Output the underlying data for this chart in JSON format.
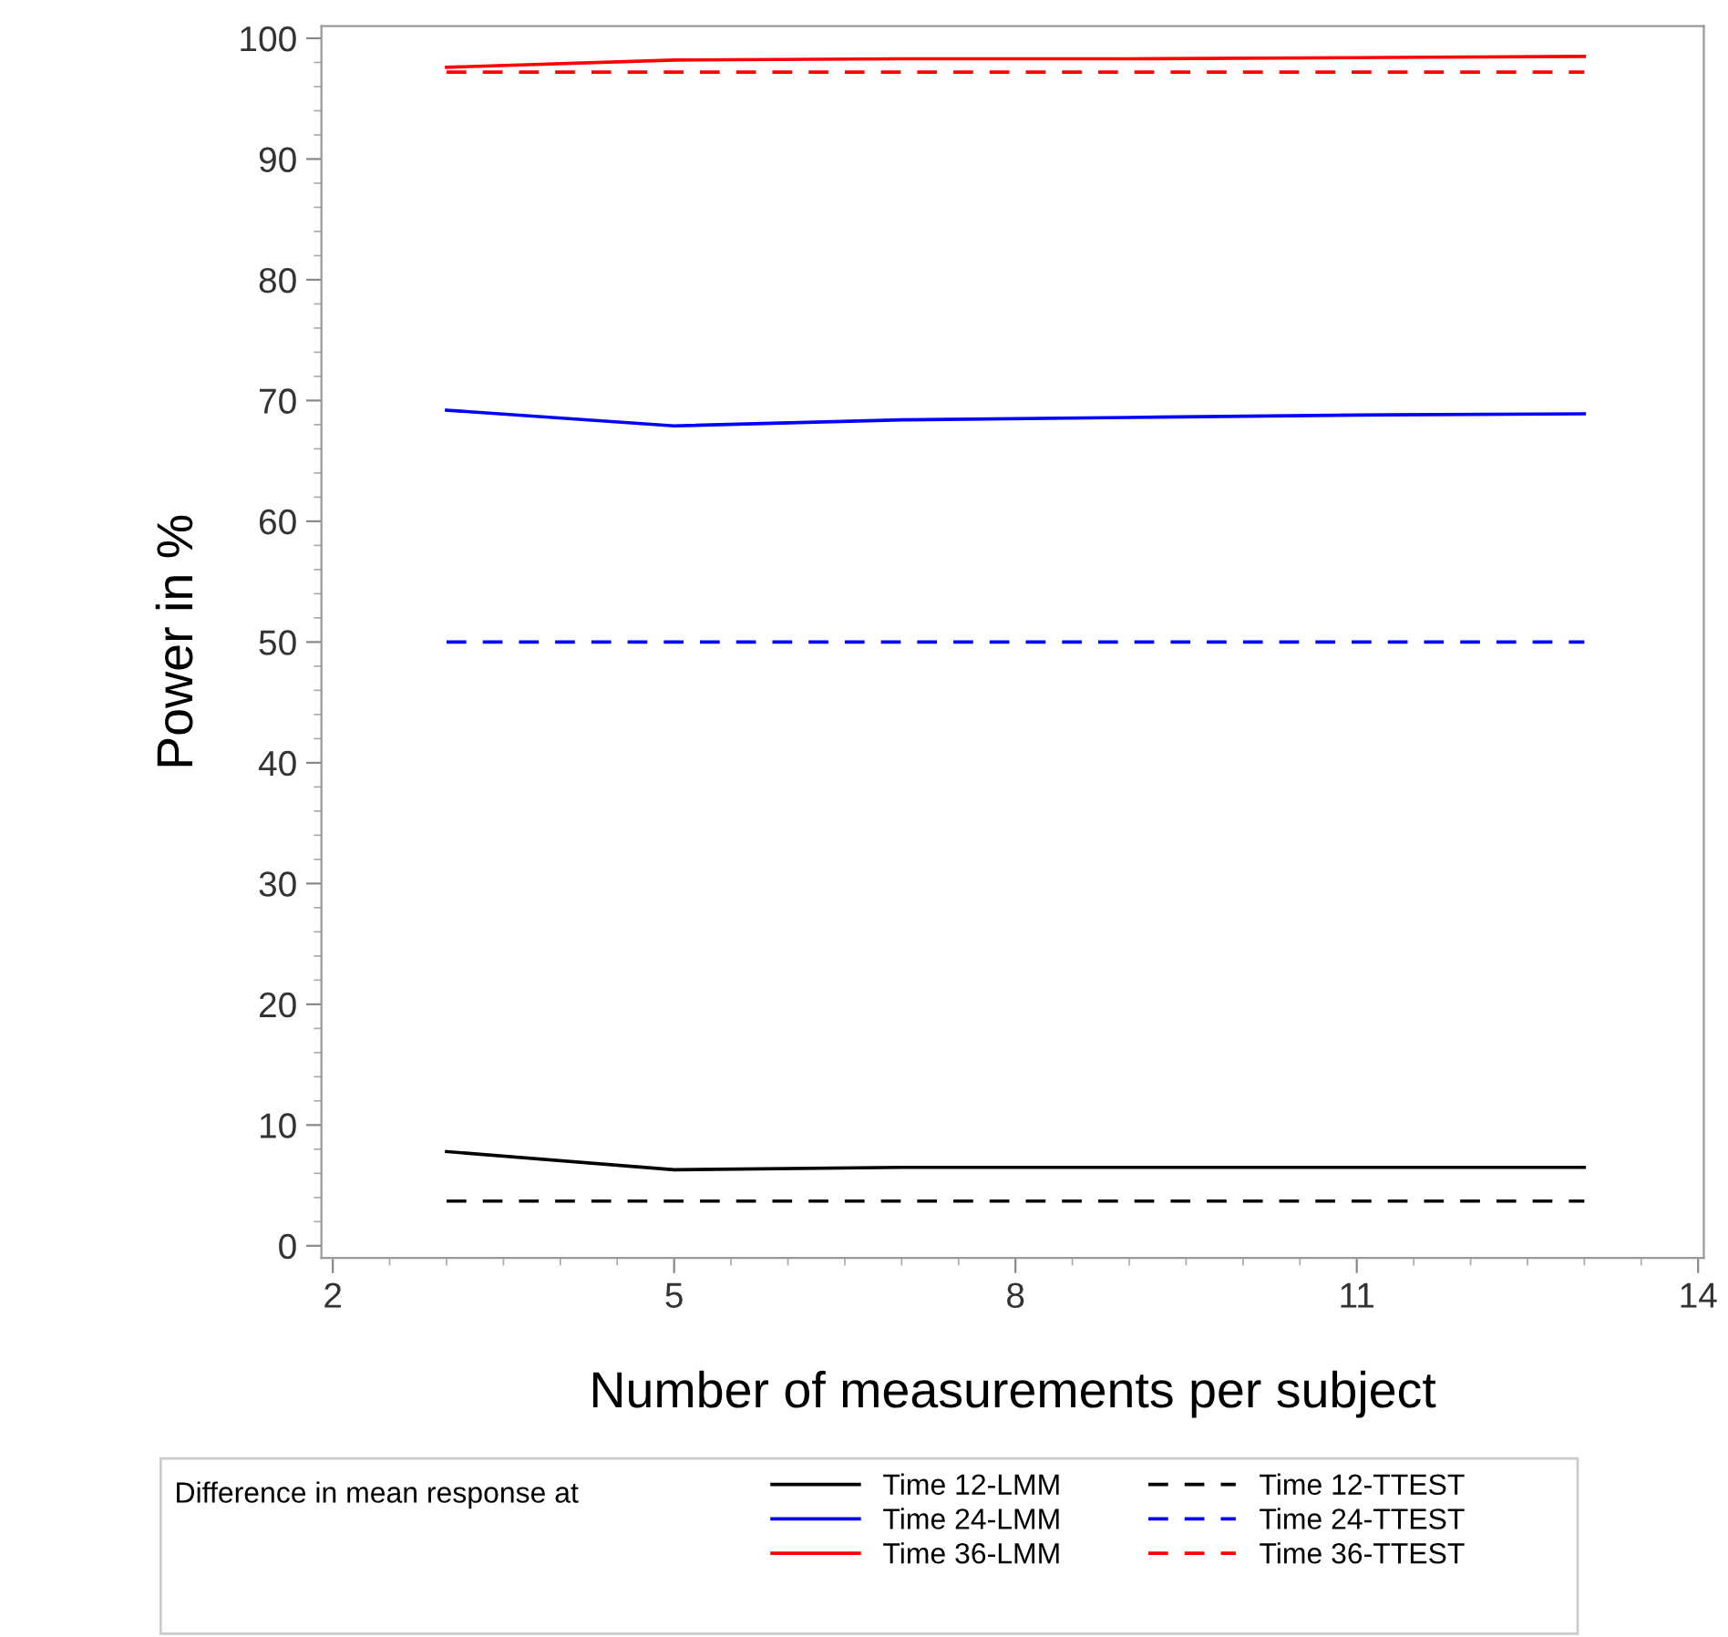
{
  "chart_data": {
    "type": "line",
    "xlabel": "Number of measurements per subject",
    "ylabel": "Power in %",
    "legend_title": "Difference in mean response at",
    "x": [
      3,
      5,
      7,
      9,
      11,
      13
    ],
    "xlim": [
      1.9,
      14.05
    ],
    "xticks": [
      2,
      5,
      8,
      11,
      14
    ],
    "ylim": [
      -1,
      101
    ],
    "yticks": [
      0,
      10,
      20,
      30,
      40,
      50,
      60,
      70,
      80,
      90,
      100
    ],
    "grid": false,
    "legend": "bottom",
    "marker": "none",
    "series": [
      {
        "name": "Time 12-LMM",
        "color": "#000000",
        "line_style": "solid",
        "values": [
          7.8,
          6.3,
          6.5,
          6.5,
          6.5,
          6.5
        ]
      },
      {
        "name": "Time 24-LMM",
        "color": "#0000ff",
        "line_style": "solid",
        "values": [
          69.2,
          67.9,
          68.4,
          68.6,
          68.8,
          68.9
        ]
      },
      {
        "name": "Time 36-LMM",
        "color": "#ff0000",
        "line_style": "solid",
        "values": [
          97.6,
          98.2,
          98.3,
          98.3,
          98.4,
          98.5
        ]
      },
      {
        "name": "Time 12-TTEST",
        "color": "#000000",
        "line_style": "dashed",
        "values": [
          3.7,
          3.7,
          3.7,
          3.7,
          3.7,
          3.7
        ]
      },
      {
        "name": "Time 24-TTEST",
        "color": "#0000ff",
        "line_style": "dashed",
        "values": [
          50.0,
          50.0,
          50.0,
          50.0,
          50.0,
          50.0
        ]
      },
      {
        "name": "Time 36-TTEST",
        "color": "#ff0000",
        "line_style": "dashed",
        "values": [
          97.2,
          97.2,
          97.2,
          97.2,
          97.2,
          97.2
        ]
      }
    ]
  }
}
